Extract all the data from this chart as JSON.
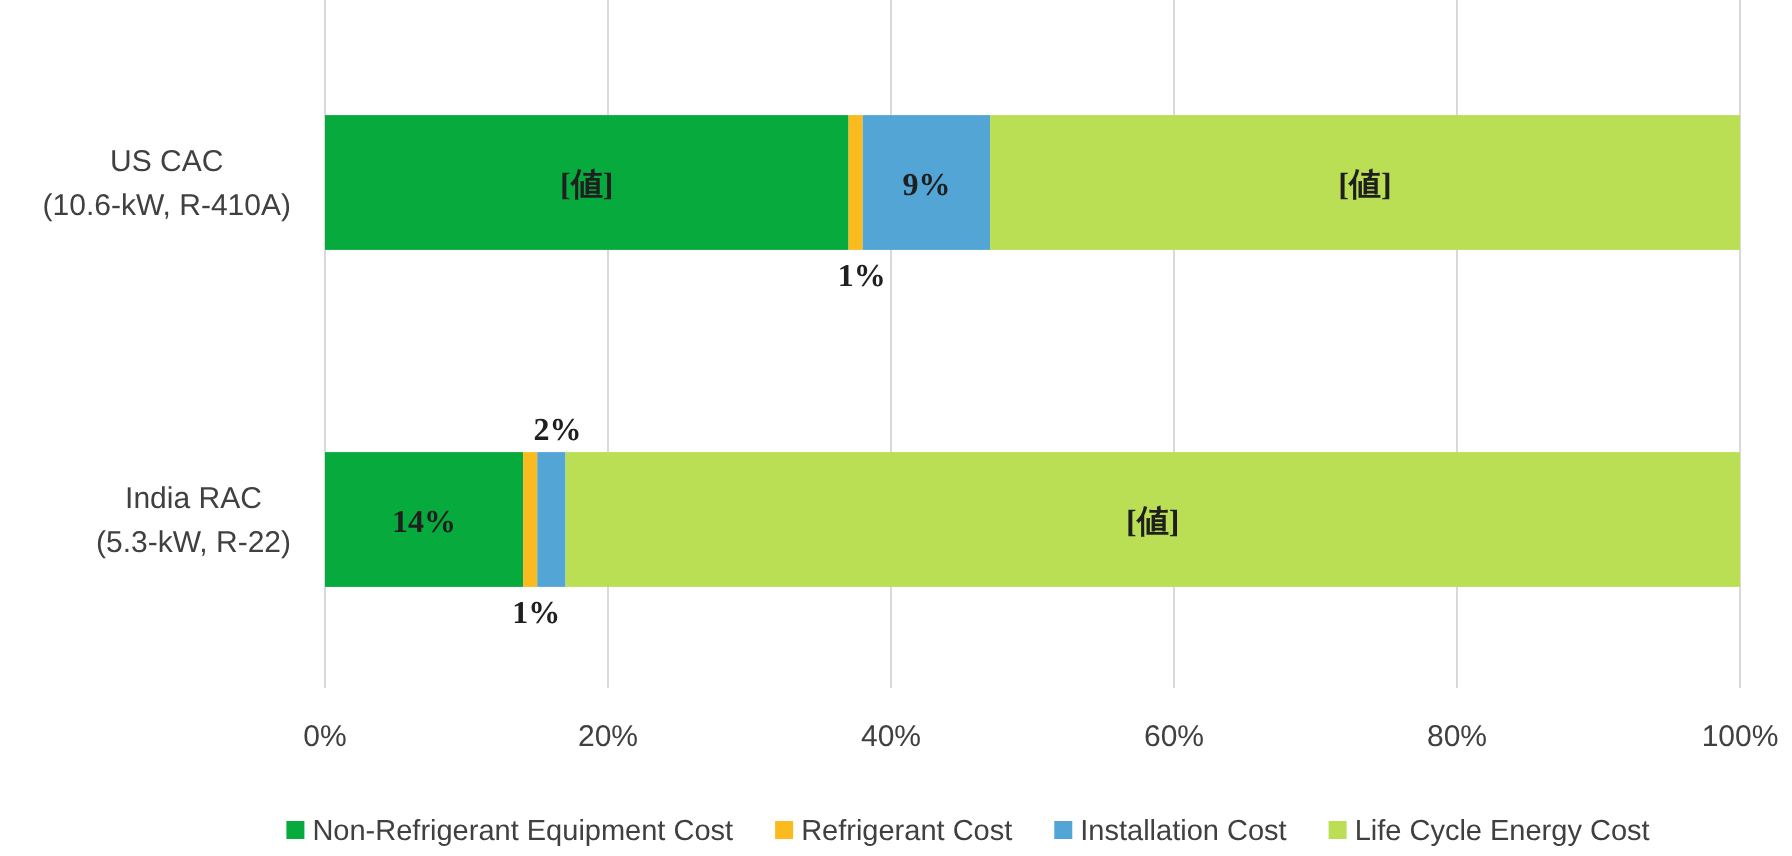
{
  "chart_data": {
    "type": "bar",
    "orientation": "horizontal",
    "stacked": true,
    "categories": [
      "US CAC\n(10.6-kW, R-410A)",
      "India RAC\n(5.3-kW, R-22)"
    ],
    "series": [
      {
        "name": "Non-Refrigerant Equipment Cost",
        "color": "#07aa3d",
        "values": [
          37,
          14
        ],
        "value_labels": [
          "[値]",
          "14%"
        ]
      },
      {
        "name": "Refrigerant Cost",
        "color": "#fbba1e",
        "values": [
          1,
          1
        ],
        "value_labels": [
          "1%",
          "1%"
        ]
      },
      {
        "name": "Installation Cost",
        "color": "#52a5d5",
        "values": [
          9,
          2
        ],
        "value_labels": [
          "9%",
          "2%"
        ]
      },
      {
        "name": "Life Cycle Energy Cost",
        "color": "#badf55",
        "values": [
          53,
          83
        ],
        "value_labels": [
          "[値]",
          "[値]"
        ]
      }
    ],
    "xlim": [
      0,
      100
    ],
    "xticks": [
      {
        "value": 0,
        "label": "0%"
      },
      {
        "value": 20,
        "label": "20%"
      },
      {
        "value": 40,
        "label": "40%"
      },
      {
        "value": 60,
        "label": "60%"
      },
      {
        "value": 80,
        "label": "80%"
      },
      {
        "value": 100,
        "label": "100%"
      }
    ],
    "grid": "x",
    "legend": "bottom"
  }
}
